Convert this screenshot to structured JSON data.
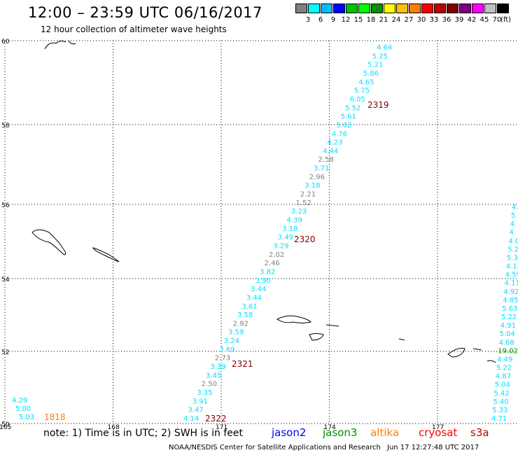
{
  "header": {
    "title": "12:00 – 23:59 UTC 06/16/2017",
    "subtitle": "12 hour collection of altimeter wave heights"
  },
  "colorbar": {
    "colors": [
      "#808080",
      "#00ffff",
      "#00bfff",
      "#0000ff",
      "#00c000",
      "#00ff00",
      "#009000",
      "#ffff00",
      "#ffc000",
      "#ff8000",
      "#ff0000",
      "#c00000",
      "#800000",
      "#800080",
      "#ff00ff",
      "#c0c0c0",
      "#000000"
    ],
    "labels": [
      "3",
      "6",
      "9",
      "12",
      "15",
      "18",
      "21",
      "24",
      "27",
      "30",
      "33",
      "36",
      "39",
      "42",
      "45",
      "70"
    ],
    "unit": "(ft)"
  },
  "map": {
    "lat_range": [
      50,
      60
    ],
    "lon_range": [
      165,
      179
    ],
    "lat_ticks": [
      "50",
      "52",
      "54",
      "56",
      "58",
      "60"
    ],
    "lon_ticks": [
      "165",
      "168",
      "171",
      "174",
      "177"
    ],
    "grid_color": "#000000",
    "grid_style": "dotted"
  },
  "track_labels": [
    {
      "text": "2319",
      "color": "#800000"
    },
    {
      "text": "2320",
      "color": "#800000"
    },
    {
      "text": "2321",
      "color": "#800000"
    },
    {
      "text": "2322",
      "color": "#800000"
    },
    {
      "text": "1818",
      "color": "#ff8000"
    }
  ],
  "tracks": {
    "main": {
      "values": [
        "4.64",
        "5.25",
        "5.21",
        "5.86",
        "4.65",
        "5.75",
        "6.05",
        "5.52",
        "5.61",
        "5.02",
        "4.76",
        "4.23",
        "4.44",
        "2.58",
        "3.71",
        "2.96",
        "3.18",
        "2.21",
        "1.52",
        "3.23",
        "4.39",
        "3.18",
        "3.49",
        "3.29",
        "2.02",
        "2.46",
        "3.82",
        "3.90",
        "3.44",
        "3.44",
        "3.61",
        "3.58",
        "2.92",
        "3.59",
        "3.24",
        "3.69",
        "2.73",
        "3.39",
        "3.45",
        "2.50",
        "3.35",
        "3.91",
        "3.47",
        "4.14"
      ],
      "colors": [
        "c",
        "c",
        "c",
        "c",
        "c",
        "c",
        "c",
        "c",
        "c",
        "c",
        "c",
        "c",
        "c",
        "g",
        "c",
        "g",
        "c",
        "g",
        "g",
        "c",
        "c",
        "c",
        "c",
        "c",
        "g",
        "g",
        "c",
        "c",
        "c",
        "c",
        "c",
        "c",
        "g",
        "c",
        "c",
        "c",
        "g",
        "c",
        "c",
        "g",
        "c",
        "c",
        "c",
        "c"
      ]
    },
    "west": {
      "values": [
        "4.29",
        "5.00",
        "5.03"
      ],
      "colors": [
        "c",
        "c",
        "c"
      ]
    },
    "east": {
      "values": [
        "4.",
        "5.",
        "4.",
        "4.",
        "4.0",
        "5.2",
        "5.3",
        "4.14",
        "4.59",
        "4.11",
        "4.92",
        "4.85",
        "5.63",
        "5.22",
        "4.91",
        "5.04",
        "4.68",
        "19.02",
        "4.49",
        "5.22",
        "4.87",
        "5.04",
        "5.42",
        "5.40",
        "5.33",
        "4.71"
      ],
      "colors": [
        "c",
        "c",
        "c",
        "c",
        "c",
        "c",
        "c",
        "c",
        "c",
        "c",
        "c",
        "c",
        "c",
        "c",
        "c",
        "c",
        "c",
        "gr",
        "c",
        "c",
        "c",
        "c",
        "c",
        "c",
        "c",
        "c"
      ]
    }
  },
  "footer": {
    "note": "note: 1) Time is in UTC; 2) SWH is in feet",
    "satellites": [
      {
        "name": "jason2",
        "color": "#0000ff"
      },
      {
        "name": "jason3",
        "color": "#009000"
      },
      {
        "name": "altika",
        "color": "#ff8000"
      },
      {
        "name": "cryosat",
        "color": "#ff0000"
      },
      {
        "name": "s3a",
        "color": "#c00000"
      }
    ],
    "credit": "NOAA/NESDIS Center for Satellite Applications and Research",
    "timestamp": "Jun 17 12:27:48 UTC 2017"
  },
  "palette": {
    "c": "#00dfff",
    "g": "#808080",
    "gr": "#009000"
  }
}
